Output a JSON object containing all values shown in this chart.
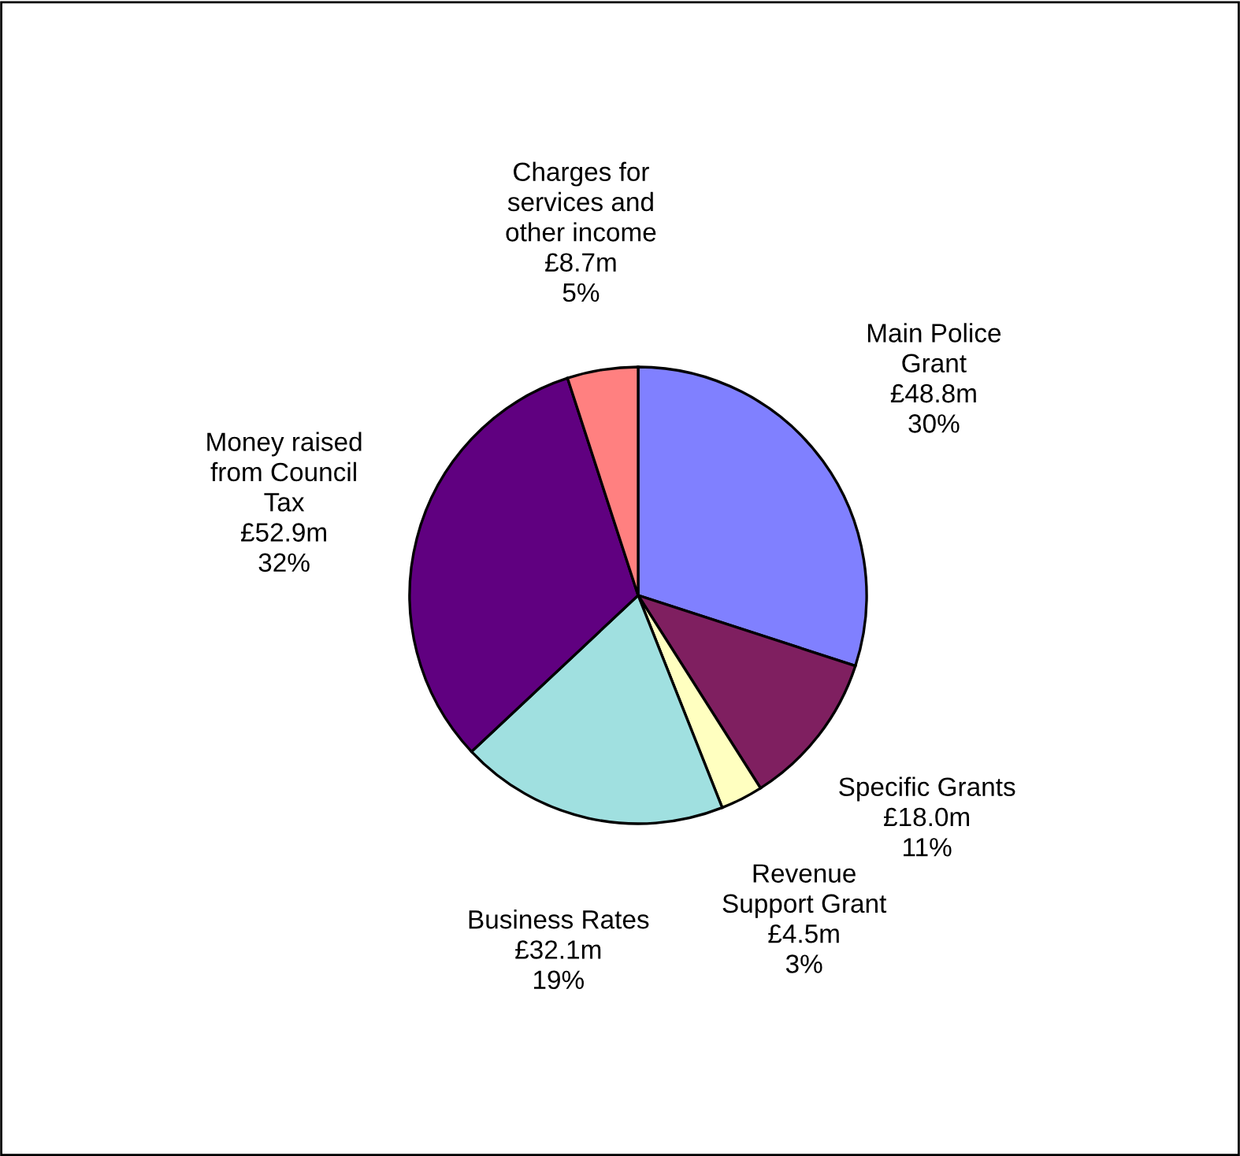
{
  "chart_data": {
    "type": "pie",
    "categories": [
      "Main Police\nGrant",
      "Specific Grants",
      "Revenue\nSupport Grant",
      "Business Rates",
      "Money raised\nfrom Council\nTax",
      "Charges for\nservices and\nother income"
    ],
    "values": [
      30,
      11,
      3,
      19,
      32,
      5
    ],
    "value_labels": [
      "£48.8m\n30%",
      "£18.0m\n11%",
      "£4.5m\n3%",
      "£32.1m\n19%",
      "£52.9m\n32%",
      "£8.7m\n5%"
    ],
    "colors": [
      "#8080ff",
      "#7f1f60",
      "#ffffc0",
      "#a0e0e0",
      "#600080",
      "#ff8080"
    ],
    "legend": false
  }
}
